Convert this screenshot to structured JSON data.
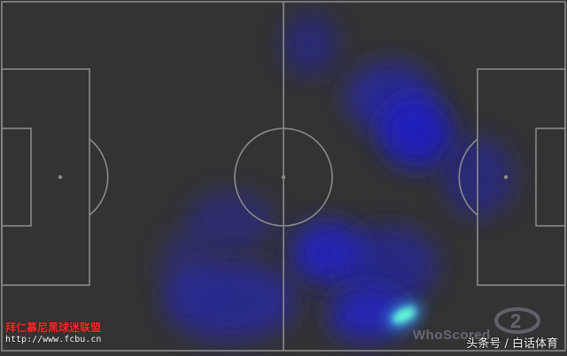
{
  "heatmap": {
    "pitch_color": "#333333",
    "line_color": "#8a8a8a",
    "blob_color": "#2222cc",
    "hot_color": "#55ffcc"
  },
  "watermarks": {
    "club_line1": "拜仁慕尼黑球迷联盟",
    "club_line2": "http://www.fcbu.cn",
    "provider": "WhoScored",
    "source": "头条号 / 白话体育"
  },
  "icons": {
    "provider_logo": "whoscored-logo-icon"
  }
}
